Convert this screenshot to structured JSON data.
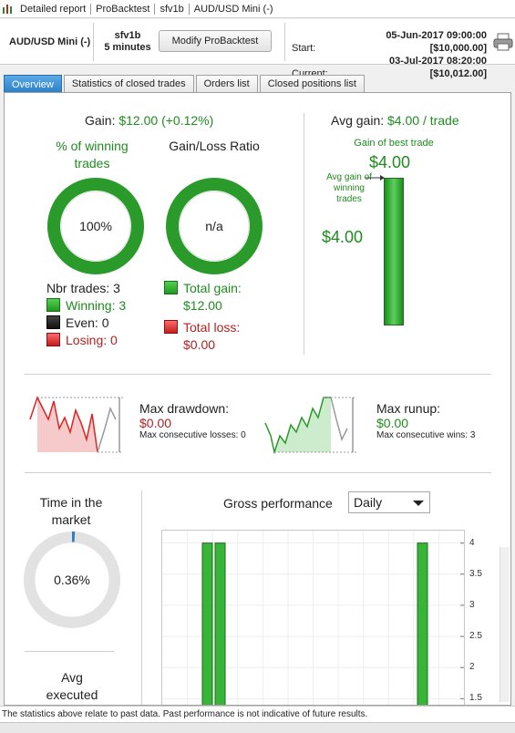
{
  "window": {
    "tabs": [
      "Detailed report",
      "ProBacktest",
      "sfv1b",
      "AUD/USD Mini (-)"
    ]
  },
  "header": {
    "symbol": "AUD/USD Mini (-)",
    "strategy": "sfv1b",
    "timeframe": "5 minutes",
    "modify_button": "Modify ProBacktest",
    "start_label": "Start:",
    "start_value": "05-Jun-2017 09:00:00 [$10,000.00]",
    "current_label": "Current:",
    "current_value": "03-Jul-2017 08:20:00 [$10,012.00]"
  },
  "tabs": [
    {
      "label": "Overview",
      "active": true
    },
    {
      "label": "Statistics of closed trades",
      "active": false
    },
    {
      "label": "Orders list",
      "active": false
    },
    {
      "label": "Closed positions list",
      "active": false
    }
  ],
  "overview": {
    "gain_title": "Gain: ",
    "gain_value": "$12.00 (+0.12%)",
    "pct_winning_label": "% of winning trades",
    "pct_winning_value": "100%",
    "pct_winning_fraction": 1.0,
    "ratio_label": "Gain/Loss Ratio",
    "ratio_value": "n/a",
    "nbr_trades": "Nbr trades: 3",
    "winning": "Winning: 3",
    "even": "Even: 0",
    "losing": "Losing: 0",
    "total_gain_label": "Total gain:",
    "total_gain_value": "$12.00",
    "total_loss_label": "Total loss:",
    "total_loss_value": "$0.00",
    "avg_gain_title": "Avg gain: ",
    "avg_gain_value": "$4.00 / trade",
    "best_trade_label": "Gain of best trade",
    "best_trade_value": "$4.00",
    "avg_winning_label": "Avg gain of winning trades",
    "avg_winning_value": "$4.00",
    "max_drawdown_label": "Max drawdown:",
    "max_drawdown_value": "$0.00",
    "max_consec_losses": "Max consecutive losses: 0",
    "max_runup_label": "Max runup:",
    "max_runup_value": "$0.00",
    "max_consec_wins": "Max consecutive wins: 3",
    "time_in_market_label": "Time in the market",
    "time_in_market_value": "0.36%",
    "time_in_market_fraction": 0.0036,
    "avg_executed_label": "Avg executed",
    "gross_perf_label": "Gross performance",
    "gross_perf_period": "Daily"
  },
  "chart_data": {
    "type": "bar",
    "yticks": [
      "4",
      "3.5",
      "3",
      "2.5",
      "2",
      "1.5"
    ],
    "ylim": [
      1.3,
      4.2
    ],
    "bars": [
      {
        "slot": 0,
        "value": 4
      },
      {
        "slot": 1,
        "value": 4
      },
      {
        "slot": 2,
        "value": 4
      }
    ]
  },
  "colors": {
    "accent": "#2b7fc8",
    "positive": "#1f8c1f",
    "negative": "#b22222"
  },
  "footer": {
    "disclaimer": "The statistics above relate to past data. Past performance is not indicative of future results."
  }
}
